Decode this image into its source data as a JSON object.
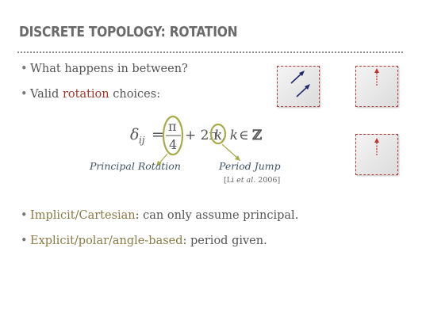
{
  "slide": {
    "title": "DISCRETE TOPOLOGY: ROTATION",
    "bullets_top": [
      {
        "text": "What happens in between?"
      },
      {
        "prefix": "Valid ",
        "highlight": "rotation",
        "suffix": " choices:",
        "highlight_color": "#a0372a"
      }
    ],
    "formula": {
      "lhs_symbol": "δ",
      "lhs_subscript": "ij",
      "equals": "=",
      "numerator": "π",
      "denominator": "4",
      "plus_term": "+ 2π",
      "k": "k",
      "comma_k": ", k",
      "element_of": "∈",
      "integers": "ℤ"
    },
    "annotations": {
      "principal": "Principal Rotation",
      "period": "Period Jump"
    },
    "citation": {
      "open": "[Li ",
      "et_al": "et al.",
      "close": " 2006]"
    },
    "bullets_bottom": [
      {
        "highlight": "Implicit/Cartesian",
        "rest": ": can only assume principal."
      },
      {
        "highlight": "Explicit/polar/angle-based",
        "rest": ": period given."
      }
    ],
    "bullet_glyph": "•",
    "colors": {
      "accent_red": "#a0372a",
      "olive": "#8a7a45",
      "ellipse": "#a8ab4a",
      "arrow_blue": "#1f2a6b",
      "arrow_red": "#c03030"
    },
    "icons": [
      "diagonal-arrows-icon",
      "up-arrow-icon",
      "up-arrow-icon"
    ]
  }
}
